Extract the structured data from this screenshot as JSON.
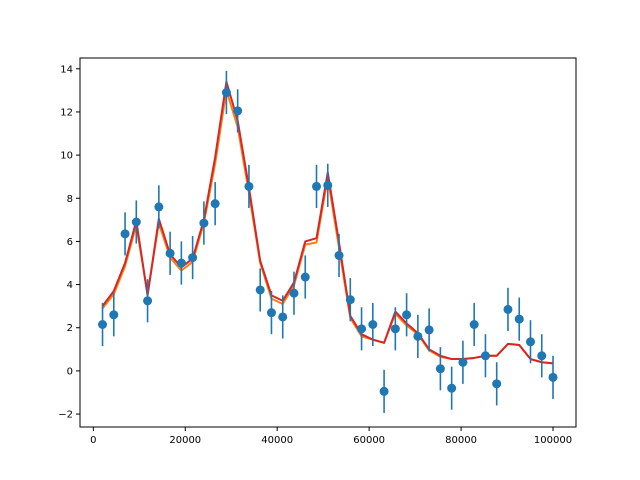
{
  "chart_data": {
    "type": "scatter",
    "title": "",
    "xlabel": "",
    "ylabel": "",
    "xlim": [
      -2900,
      105000
    ],
    "ylim": [
      -2.6,
      14.5
    ],
    "grid": false,
    "legend": "none",
    "x_ticks": [
      0,
      20000,
      40000,
      60000,
      80000,
      100000
    ],
    "x_tick_labels": [
      "0",
      "20000",
      "40000",
      "60000",
      "80000",
      "100000"
    ],
    "y_ticks": [
      -2,
      0,
      2,
      4,
      6,
      8,
      10,
      12,
      14
    ],
    "y_tick_labels": [
      "−2",
      "0",
      "2",
      "4",
      "6",
      "8",
      "10",
      "12",
      "14"
    ],
    "errorbar_series": {
      "color": "#1f77b4",
      "x": [
        2000,
        4450,
        6900,
        9350,
        11800,
        14250,
        16700,
        19150,
        21600,
        24050,
        26500,
        28950,
        31400,
        33850,
        36300,
        38750,
        41200,
        43650,
        46100,
        48550,
        51000,
        53450,
        55900,
        58350,
        60800,
        63250,
        65700,
        68150,
        70600,
        73050,
        75500,
        77950,
        80400,
        82850,
        85300,
        87750,
        90200,
        92650,
        95100,
        97550,
        100000
      ],
      "y": [
        2.15,
        2.6,
        6.35,
        6.9,
        3.25,
        7.6,
        5.45,
        5.0,
        5.25,
        6.85,
        7.75,
        12.9,
        12.05,
        8.55,
        3.75,
        2.7,
        2.5,
        3.6,
        4.35,
        8.55,
        8.6,
        5.35,
        3.3,
        1.95,
        2.15,
        -0.95,
        1.95,
        2.6,
        1.6,
        1.9,
        0.1,
        -0.8,
        0.4,
        2.15,
        0.7,
        -0.6,
        2.85,
        2.4,
        1.35,
        0.7,
        -0.3
      ],
      "yerr": 1.0
    },
    "series": [
      {
        "color": "#ff7f0e",
        "x": [
          2000,
          4450,
          6900,
          9350,
          11800,
          14250,
          16700,
          19150,
          21600,
          24050,
          26500,
          28950,
          31400,
          33850,
          36300,
          38750,
          41200,
          43650,
          46100,
          48550,
          51000,
          53450,
          55900,
          58350,
          60800,
          63250,
          65700,
          68150,
          70600,
          73050,
          75500,
          77950,
          80400,
          82850,
          85300,
          87750,
          90200,
          92650,
          95100,
          97550,
          100000
        ],
        "values": [
          2.9,
          3.55,
          4.85,
          6.75,
          3.55,
          6.85,
          5.25,
          4.65,
          5.05,
          6.85,
          9.6,
          13.0,
          11.3,
          8.25,
          5.0,
          3.35,
          3.1,
          3.95,
          5.85,
          5.95,
          8.95,
          5.7,
          2.45,
          1.6,
          1.45,
          1.3,
          2.65,
          2.1,
          1.7,
          0.95,
          0.65,
          0.55,
          0.55,
          0.6,
          0.7,
          0.7,
          1.25,
          1.2,
          0.55,
          0.4,
          0.35
        ]
      },
      {
        "color": "#d62728",
        "x": [
          2000,
          4450,
          6900,
          9350,
          11800,
          14250,
          16700,
          19150,
          21600,
          24050,
          26500,
          28950,
          31400,
          33850,
          36300,
          38750,
          41200,
          43650,
          46100,
          48550,
          51000,
          53450,
          55900,
          58350,
          60800,
          63250,
          65700,
          68150,
          70600,
          73050,
          75500,
          77950,
          80400,
          82850,
          85300,
          87750,
          90200,
          92650,
          95100,
          97550,
          100000
        ],
        "values": [
          3.0,
          3.7,
          5.0,
          6.95,
          3.5,
          7.05,
          5.4,
          4.8,
          5.2,
          7.0,
          9.9,
          13.4,
          11.6,
          8.5,
          5.1,
          3.5,
          3.25,
          4.1,
          6.0,
          6.15,
          9.2,
          5.95,
          2.55,
          1.7,
          1.45,
          1.3,
          2.75,
          2.2,
          1.75,
          1.0,
          0.7,
          0.55,
          0.55,
          0.6,
          0.7,
          0.7,
          1.25,
          1.2,
          0.55,
          0.4,
          0.35
        ]
      }
    ]
  }
}
